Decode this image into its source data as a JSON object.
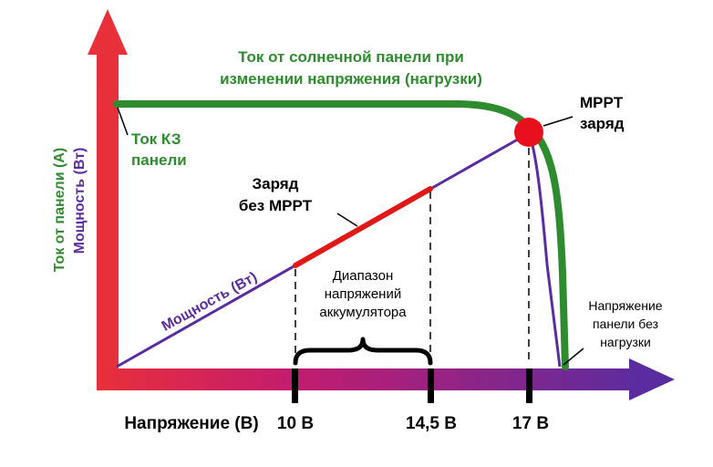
{
  "colors": {
    "current_curve": "#2e8b2e",
    "power_curve": "#5b2c9f",
    "no_mppt_segment": "#e01818",
    "mppt_point": "#e8101c",
    "green_text": "#2e8b2e",
    "purple_text": "#5b2c9f",
    "axis_left_color": "#e8303a",
    "axis_right_color": "#5b2c9f"
  },
  "labels": {
    "current_curve_line1": "Ток от солнечной панели при",
    "current_curve_line2": "изменении напряжения (нагрузки)",
    "short_circuit_line1": "Ток КЗ",
    "short_circuit_line2": "панели",
    "mppt_line1": "MPPT",
    "mppt_line2": "заряд",
    "no_mppt_line1": "Заряд",
    "no_mppt_line2": "без MPPT",
    "power_curve": "Мощность (Вт)",
    "battery_range_line1": "Диапазон",
    "battery_range_line2": "напряжений",
    "battery_range_line3": "аккумулятора",
    "open_circuit_line1": "Напряжение",
    "open_circuit_line2": "панели без",
    "open_circuit_line3": "нагрузки"
  },
  "axes": {
    "y_label_current": "Ток от панели (А)",
    "y_label_power": "Мощность (Вт)",
    "x_label": "Напряжение (В)",
    "ticks": [
      "10 В",
      "14,5 В",
      "17 В"
    ]
  }
}
